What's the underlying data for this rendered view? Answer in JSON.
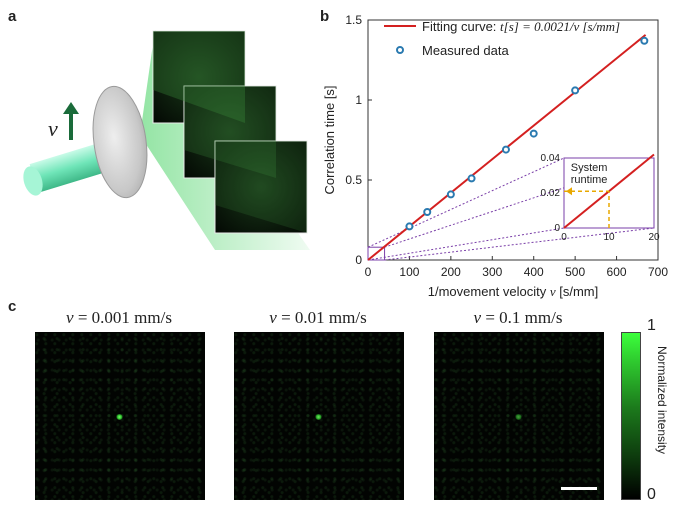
{
  "panels": {
    "a": {
      "letter": "a",
      "velocity_symbol": "v"
    },
    "b": {
      "letter": "b"
    },
    "c": {
      "letter": "c"
    }
  },
  "chart_data": {
    "type": "scatter",
    "xlabel": "1/movement velocity v [s/mm]",
    "ylabel": "Correlation time [s]",
    "xlim": [
      0,
      700
    ],
    "ylim": [
      0,
      1.5
    ],
    "x_ticks": [
      "0",
      "100",
      "200",
      "300",
      "400",
      "500",
      "600",
      "700"
    ],
    "y_ticks": [
      "0",
      "0.5",
      "1",
      "1.5"
    ],
    "series": [
      {
        "name": "Fitting curve: t[s] = 0.0021/v [s/mm]",
        "kind": "line",
        "color": "#d42020",
        "x": [
          0,
          670
        ],
        "y": [
          0,
          1.407
        ]
      },
      {
        "name": "Measured data",
        "kind": "scatter",
        "color": "#2a7ab0",
        "x": [
          100,
          143,
          200,
          250,
          333,
          400,
          500,
          667
        ],
        "y": [
          0.21,
          0.3,
          0.41,
          0.51,
          0.69,
          0.79,
          1.06,
          1.37
        ]
      }
    ],
    "legend": {
      "position": "top-left",
      "fit_label_prefix": "Fitting curve: ",
      "fit_label_eq": "t[s] = 0.0021/v [s/mm]",
      "data_label": "Measured data"
    },
    "inset": {
      "xlim": [
        0,
        20
      ],
      "ylim": [
        0,
        0.04
      ],
      "x_ticks": [
        "0",
        "10",
        "20"
      ],
      "y_ticks": [
        "0",
        "0.02",
        "0.04"
      ],
      "annotation": "System runtime",
      "annotation_line1": "System",
      "annotation_line2": "runtime",
      "runtime_x": 10,
      "runtime_y": 0.021
    }
  },
  "images": [
    {
      "caption": "v = 0.001 mm/s",
      "caption_symbol": "v",
      "caption_rest": " = 0.001 mm/s",
      "spot_level": 1.0
    },
    {
      "caption": "v = 0.01 mm/s",
      "caption_symbol": "v",
      "caption_rest": " = 0.01 mm/s",
      "spot_level": 0.9
    },
    {
      "caption": "v = 0.1 mm/s",
      "caption_symbol": "v",
      "caption_rest": " = 0.1 mm/s",
      "spot_level": 0.6
    }
  ],
  "colorbar": {
    "label": "Normalized intensity",
    "max_label": "1",
    "min_label": "0",
    "colors": [
      "#000000",
      "#3cff3c"
    ]
  }
}
